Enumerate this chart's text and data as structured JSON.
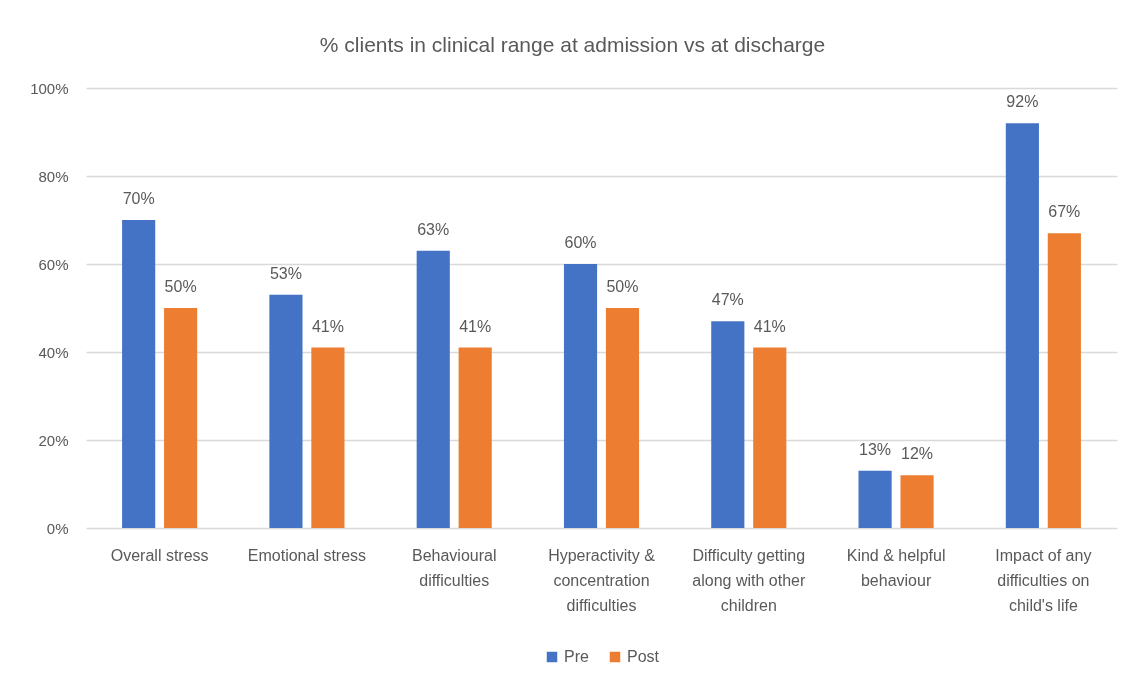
{
  "chart_data": {
    "type": "bar",
    "title": "% clients in clinical range at admission vs at discharge",
    "categories": [
      "Overall stress",
      "Emotional stress",
      "Behavioural difficulties",
      "Hyperactivity & concentration difficulties",
      "Difficulty getting along with other children",
      "Kind & helpful behaviour",
      "Impact of any difficulties on child's life"
    ],
    "series": [
      {
        "name": "Pre",
        "color": "#4472c4",
        "values": [
          70,
          53,
          63,
          60,
          47,
          13,
          92
        ],
        "value_labels": [
          "70%",
          "53%",
          "63%",
          "60%",
          "47%",
          "13%",
          "92%"
        ]
      },
      {
        "name": "Post",
        "color": "#ed7d31",
        "values": [
          50,
          41,
          41,
          50,
          41,
          12,
          67
        ],
        "value_labels": [
          "50%",
          "41%",
          "41%",
          "50%",
          "41%",
          "12%",
          "67%"
        ]
      }
    ],
    "ylim": [
      0,
      100
    ],
    "yticks": [
      {
        "value": 0,
        "label": "0%"
      },
      {
        "value": 20,
        "label": "20%"
      },
      {
        "value": 40,
        "label": "40%"
      },
      {
        "value": 60,
        "label": "60%"
      },
      {
        "value": 80,
        "label": "80%"
      },
      {
        "value": 100,
        "label": "100%"
      }
    ],
    "grid": "y",
    "legend": "bottom"
  }
}
